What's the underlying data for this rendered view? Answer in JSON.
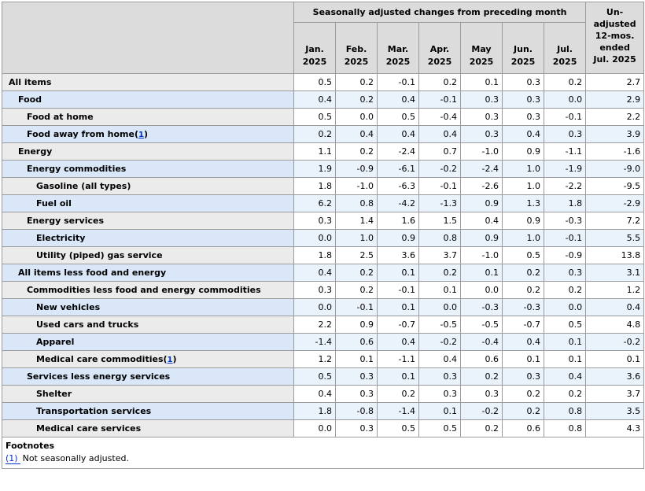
{
  "table": {
    "header": {
      "group_title": "Seasonally adjusted changes from preceding month",
      "months": [
        {
          "abbr": "Jan.",
          "year": "2025"
        },
        {
          "abbr": "Feb.",
          "year": "2025"
        },
        {
          "abbr": "Mar.",
          "year": "2025"
        },
        {
          "abbr": "Apr.",
          "year": "2025"
        },
        {
          "abbr": "May",
          "year": "2025"
        },
        {
          "abbr": "Jun.",
          "year": "2025"
        },
        {
          "abbr": "Jul.",
          "year": "2025"
        }
      ],
      "unadjusted_lines": [
        "Un-",
        "adjusted",
        "12-mos.",
        "ended",
        "Jul. 2025"
      ]
    },
    "rows": [
      {
        "label": "All items",
        "level": 0,
        "footnote": "",
        "values": [
          "0.5",
          "0.2",
          "-0.1",
          "0.2",
          "0.1",
          "0.3",
          "0.2"
        ],
        "unadjusted": "2.7"
      },
      {
        "label": "Food",
        "level": 1,
        "footnote": "",
        "values": [
          "0.4",
          "0.2",
          "0.4",
          "-0.1",
          "0.3",
          "0.3",
          "0.0"
        ],
        "unadjusted": "2.9"
      },
      {
        "label": "Food at home",
        "level": 2,
        "footnote": "",
        "values": [
          "0.5",
          "0.0",
          "0.5",
          "-0.4",
          "0.3",
          "0.3",
          "-0.1"
        ],
        "unadjusted": "2.2"
      },
      {
        "label": "Food away from home",
        "level": 2,
        "footnote": "1",
        "values": [
          "0.2",
          "0.4",
          "0.4",
          "0.4",
          "0.3",
          "0.4",
          "0.3"
        ],
        "unadjusted": "3.9"
      },
      {
        "label": "Energy",
        "level": 1,
        "footnote": "",
        "values": [
          "1.1",
          "0.2",
          "-2.4",
          "0.7",
          "-1.0",
          "0.9",
          "-1.1"
        ],
        "unadjusted": "-1.6"
      },
      {
        "label": "Energy commodities",
        "level": 2,
        "footnote": "",
        "values": [
          "1.9",
          "-0.9",
          "-6.1",
          "-0.2",
          "-2.4",
          "1.0",
          "-1.9"
        ],
        "unadjusted": "-9.0"
      },
      {
        "label": "Gasoline (all types)",
        "level": 3,
        "footnote": "",
        "values": [
          "1.8",
          "-1.0",
          "-6.3",
          "-0.1",
          "-2.6",
          "1.0",
          "-2.2"
        ],
        "unadjusted": "-9.5"
      },
      {
        "label": "Fuel oil",
        "level": 3,
        "footnote": "",
        "values": [
          "6.2",
          "0.8",
          "-4.2",
          "-1.3",
          "0.9",
          "1.3",
          "1.8"
        ],
        "unadjusted": "-2.9"
      },
      {
        "label": "Energy services",
        "level": 2,
        "footnote": "",
        "values": [
          "0.3",
          "1.4",
          "1.6",
          "1.5",
          "0.4",
          "0.9",
          "-0.3"
        ],
        "unadjusted": "7.2"
      },
      {
        "label": "Electricity",
        "level": 3,
        "footnote": "",
        "values": [
          "0.0",
          "1.0",
          "0.9",
          "0.8",
          "0.9",
          "1.0",
          "-0.1"
        ],
        "unadjusted": "5.5"
      },
      {
        "label": "Utility (piped) gas service",
        "level": 3,
        "footnote": "",
        "values": [
          "1.8",
          "2.5",
          "3.6",
          "3.7",
          "-1.0",
          "0.5",
          "-0.9"
        ],
        "unadjusted": "13.8"
      },
      {
        "label": "All items less food and energy",
        "level": 1,
        "footnote": "",
        "values": [
          "0.4",
          "0.2",
          "0.1",
          "0.2",
          "0.1",
          "0.2",
          "0.3"
        ],
        "unadjusted": "3.1"
      },
      {
        "label": "Commodities less food and energy commodities",
        "level": 2,
        "footnote": "",
        "values": [
          "0.3",
          "0.2",
          "-0.1",
          "0.1",
          "0.0",
          "0.2",
          "0.2"
        ],
        "unadjusted": "1.2"
      },
      {
        "label": "New vehicles",
        "level": 3,
        "footnote": "",
        "values": [
          "0.0",
          "-0.1",
          "0.1",
          "0.0",
          "-0.3",
          "-0.3",
          "0.0"
        ],
        "unadjusted": "0.4"
      },
      {
        "label": "Used cars and trucks",
        "level": 3,
        "footnote": "",
        "values": [
          "2.2",
          "0.9",
          "-0.7",
          "-0.5",
          "-0.5",
          "-0.7",
          "0.5"
        ],
        "unadjusted": "4.8"
      },
      {
        "label": "Apparel",
        "level": 3,
        "footnote": "",
        "values": [
          "-1.4",
          "0.6",
          "0.4",
          "-0.2",
          "-0.4",
          "0.4",
          "0.1"
        ],
        "unadjusted": "-0.2"
      },
      {
        "label": "Medical care commodities",
        "level": 3,
        "footnote": "1",
        "values": [
          "1.2",
          "0.1",
          "-1.1",
          "0.4",
          "0.6",
          "0.1",
          "0.1"
        ],
        "unadjusted": "0.1"
      },
      {
        "label": "Services less energy services",
        "level": 2,
        "footnote": "",
        "values": [
          "0.5",
          "0.3",
          "0.1",
          "0.3",
          "0.2",
          "0.3",
          "0.4"
        ],
        "unadjusted": "3.6"
      },
      {
        "label": "Shelter",
        "level": 3,
        "footnote": "",
        "values": [
          "0.4",
          "0.3",
          "0.2",
          "0.3",
          "0.3",
          "0.2",
          "0.2"
        ],
        "unadjusted": "3.7"
      },
      {
        "label": "Transportation services",
        "level": 3,
        "footnote": "",
        "values": [
          "1.8",
          "-0.8",
          "-1.4",
          "0.1",
          "-0.2",
          "0.2",
          "0.8"
        ],
        "unadjusted": "3.5"
      },
      {
        "label": "Medical care services",
        "level": 3,
        "footnote": "",
        "values": [
          "0.0",
          "0.3",
          "0.5",
          "0.5",
          "0.2",
          "0.6",
          "0.8"
        ],
        "unadjusted": "4.3"
      }
    ],
    "footnotes": {
      "title": "Footnotes",
      "items": [
        {
          "marker": "(1)",
          "text": "Not seasonally adjusted."
        }
      ]
    }
  },
  "colors": {
    "header_bg": "#dcdcdc",
    "gray_stub_bg": "#ebebeb",
    "blue_stub_bg": "#d9e7f9",
    "blue_data_bg": "#eaf2fc",
    "border": "#9b9b9b",
    "link": "#0033cc"
  }
}
